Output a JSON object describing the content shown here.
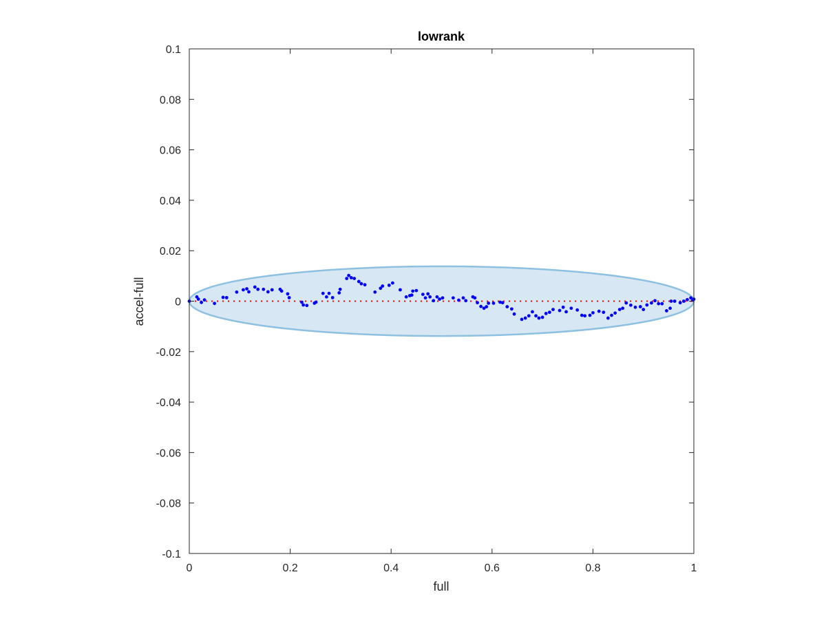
{
  "chart_data": {
    "type": "scatter",
    "title": "lowrank",
    "xlabel": "full",
    "ylabel": "accel-full",
    "xlim": [
      0,
      1
    ],
    "ylim": [
      -0.1,
      0.1
    ],
    "xticks": [
      "0",
      "0.2",
      "0.4",
      "0.6",
      "0.8",
      "1"
    ],
    "xtick_values": [
      0,
      0.2,
      0.4,
      0.6,
      0.8,
      1
    ],
    "yticks": [
      "0.1",
      "0.08",
      "0.06",
      "0.04",
      "0.02",
      "0",
      "-0.02",
      "-0.04",
      "-0.06",
      "-0.08",
      "-0.1"
    ],
    "ytick_values": [
      0.1,
      0.08,
      0.06,
      0.04,
      0.02,
      0,
      -0.02,
      -0.04,
      -0.06,
      -0.08,
      -0.1
    ],
    "grid": false,
    "reference_line": {
      "y": 0,
      "x_range": [
        0,
        1
      ],
      "style": "dotted",
      "color": "#ff0000"
    },
    "ellipse": {
      "center": [
        0.5,
        0
      ],
      "semi_axes": [
        0.5,
        0.0138
      ],
      "fill": "#d7e7f3",
      "stroke": "#8ec0e0"
    },
    "marker_color": "#0000ff",
    "points": [
      [
        0,
        0
      ],
      [
        0.015,
        0.0017
      ],
      [
        0.018,
        0.0008
      ],
      [
        0.024,
        -0.0005
      ],
      [
        0.03,
        0.0005
      ],
      [
        0.05,
        -0.0009
      ],
      [
        0.067,
        0.0015
      ],
      [
        0.074,
        0.0014
      ],
      [
        0.094,
        0.0036
      ],
      [
        0.107,
        0.0045
      ],
      [
        0.114,
        0.0049
      ],
      [
        0.118,
        0.0037
      ],
      [
        0.13,
        0.0056
      ],
      [
        0.136,
        0.0047
      ],
      [
        0.147,
        0.0047
      ],
      [
        0.156,
        0.0037
      ],
      [
        0.164,
        0.0045
      ],
      [
        0.18,
        0.0047
      ],
      [
        0.183,
        0.004
      ],
      [
        0.195,
        0.0029
      ],
      [
        0.198,
        0.0014
      ],
      [
        0.223,
        -0.0004
      ],
      [
        0.226,
        -0.0015
      ],
      [
        0.233,
        -0.0017
      ],
      [
        0.248,
        -0.0008
      ],
      [
        0.251,
        -0.0004
      ],
      [
        0.265,
        0.0031
      ],
      [
        0.272,
        0.0017
      ],
      [
        0.277,
        0.0031
      ],
      [
        0.284,
        0.0014
      ],
      [
        0.297,
        0.0033
      ],
      [
        0.299,
        0.0047
      ],
      [
        0.312,
        0.009
      ],
      [
        0.316,
        0.0102
      ],
      [
        0.321,
        0.0093
      ],
      [
        0.327,
        0.009
      ],
      [
        0.336,
        0.0078
      ],
      [
        0.341,
        0.0069
      ],
      [
        0.348,
        0.0065
      ],
      [
        0.368,
        0.0036
      ],
      [
        0.379,
        0.0051
      ],
      [
        0.383,
        0.006
      ],
      [
        0.396,
        0.0063
      ],
      [
        0.403,
        0.0072
      ],
      [
        0.418,
        0.0045
      ],
      [
        0.43,
        0.0017
      ],
      [
        0.437,
        0.0022
      ],
      [
        0.441,
        0.0024
      ],
      [
        0.443,
        0.004
      ],
      [
        0.45,
        0.0042
      ],
      [
        0.463,
        0.0027
      ],
      [
        0.468,
        0.0013
      ],
      [
        0.473,
        0.0029
      ],
      [
        0.477,
        0.0017
      ],
      [
        0.484,
        0.0002
      ],
      [
        0.491,
        0.0017
      ],
      [
        0.496,
        0.0008
      ],
      [
        0.502,
        0.0013
      ],
      [
        0.523,
        0.0013
      ],
      [
        0.534,
        0.0004
      ],
      [
        0.543,
        0.0013
      ],
      [
        0.548,
        0.0002
      ],
      [
        0.562,
        0.0017
      ],
      [
        0.566,
        0.0013
      ],
      [
        0.571,
        -0.0006
      ],
      [
        0.578,
        -0.0021
      ],
      [
        0.584,
        -0.0028
      ],
      [
        0.589,
        -0.0022
      ],
      [
        0.593,
        -0.0008
      ],
      [
        0.603,
        -0.0008
      ],
      [
        0.616,
        -0.0004
      ],
      [
        0.621,
        -0.0006
      ],
      [
        0.63,
        -0.0022
      ],
      [
        0.639,
        -0.0031
      ],
      [
        0.644,
        -0.0051
      ],
      [
        0.659,
        -0.0072
      ],
      [
        0.666,
        -0.0067
      ],
      [
        0.673,
        -0.0058
      ],
      [
        0.68,
        -0.0042
      ],
      [
        0.687,
        -0.0058
      ],
      [
        0.693,
        -0.0067
      ],
      [
        0.7,
        -0.0064
      ],
      [
        0.707,
        -0.0049
      ],
      [
        0.714,
        -0.0044
      ],
      [
        0.721,
        -0.0033
      ],
      [
        0.734,
        -0.0037
      ],
      [
        0.741,
        -0.0024
      ],
      [
        0.747,
        -0.0042
      ],
      [
        0.757,
        -0.0028
      ],
      [
        0.769,
        -0.0035
      ],
      [
        0.778,
        -0.0056
      ],
      [
        0.784,
        -0.0058
      ],
      [
        0.794,
        -0.0056
      ],
      [
        0.8,
        -0.0046
      ],
      [
        0.812,
        -0.004
      ],
      [
        0.821,
        -0.0044
      ],
      [
        0.83,
        -0.0067
      ],
      [
        0.837,
        -0.0056
      ],
      [
        0.844,
        -0.0047
      ],
      [
        0.853,
        -0.0033
      ],
      [
        0.859,
        -0.0028
      ],
      [
        0.866,
        -0.0007
      ],
      [
        0.875,
        -0.0016
      ],
      [
        0.884,
        -0.0024
      ],
      [
        0.894,
        -0.0022
      ],
      [
        0.9,
        -0.0033
      ],
      [
        0.907,
        -0.0015
      ],
      [
        0.916,
        -0.0007
      ],
      [
        0.923,
        0.0002
      ],
      [
        0.93,
        -0.001
      ],
      [
        0.937,
        -0.001
      ],
      [
        0.946,
        -0.0038
      ],
      [
        0.953,
        -0.0028
      ],
      [
        0.955,
        0
      ],
      [
        0.962,
        0
      ],
      [
        0.973,
        -0.0006
      ],
      [
        0.98,
        0
      ],
      [
        0.987,
        0.0006
      ],
      [
        0.994,
        0.0013
      ],
      [
        0.998,
        0.0004
      ],
      [
        1,
        0.0008
      ]
    ]
  }
}
